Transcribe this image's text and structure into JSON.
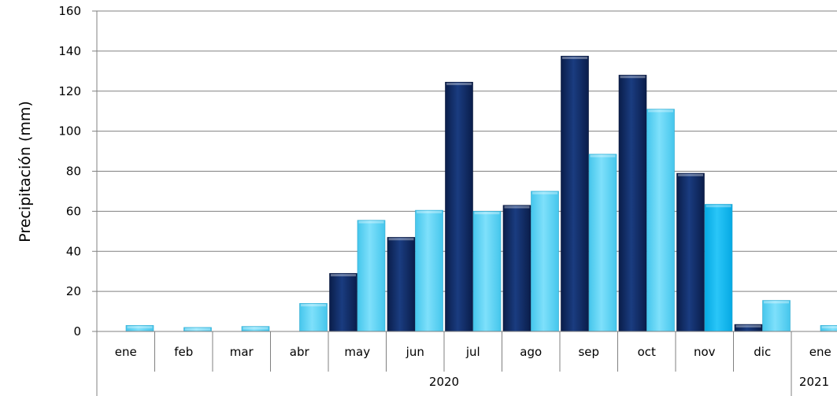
{
  "chart_data": {
    "type": "bar",
    "ylabel": "Precipitación (mm)",
    "xlabel": "",
    "ylim": [
      0,
      160
    ],
    "yticks": [
      0,
      20,
      40,
      60,
      80,
      100,
      120,
      140,
      160
    ],
    "grid": true,
    "legend": "none",
    "categories": [
      "ene",
      "feb",
      "mar",
      "abr",
      "may",
      "jun",
      "jul",
      "ago",
      "sep",
      "oct",
      "nov",
      "dic",
      "ene"
    ],
    "groups": [
      {
        "label": "2020",
        "categories": 12
      },
      {
        "label": "2021",
        "categories": 1
      }
    ],
    "series": [
      {
        "color": "#0f2a66",
        "values": [
          0,
          0,
          0,
          0,
          29,
          47,
          124.5,
          63,
          137.5,
          128,
          79,
          3.5,
          0
        ]
      },
      {
        "color": "#54d2f5",
        "values": [
          3,
          2,
          2.5,
          14,
          55.5,
          60.5,
          60,
          70,
          88.5,
          111,
          63.5,
          15.5,
          3
        ]
      }
    ],
    "colors": {
      "dark_bar": "#0f2a66",
      "light_bar": "#54d2f5",
      "highlight_bar": "#0cb4ec",
      "grid": "#808080"
    }
  }
}
